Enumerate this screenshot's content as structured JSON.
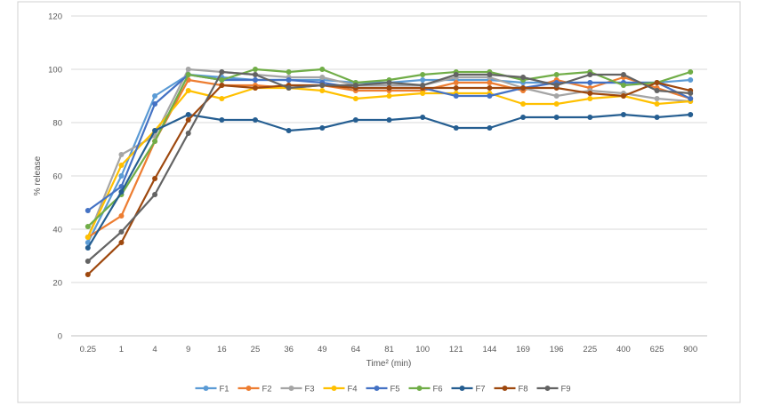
{
  "chart_data": {
    "type": "line",
    "title": "",
    "xlabel": "Time² (min)",
    "ylabel": "% release",
    "ylim": [
      0,
      120
    ],
    "yticks": [
      0,
      20,
      40,
      60,
      80,
      100,
      120
    ],
    "grid": "horizontal",
    "legend_position": "bottom",
    "categories": [
      "0.25",
      "1",
      "4",
      "9",
      "16",
      "25",
      "36",
      "49",
      "64",
      "81",
      "100",
      "121",
      "144",
      "169",
      "196",
      "225",
      "400",
      "625",
      "900"
    ],
    "series": [
      {
        "name": "F1",
        "color": "#5b9bd5",
        "values": [
          35,
          60,
          90,
          98,
          97,
          96,
          96,
          96,
          95,
          95,
          96,
          96,
          96,
          95,
          95,
          95,
          95,
          95,
          96
        ]
      },
      {
        "name": "F2",
        "color": "#ed7d31",
        "values": [
          37,
          45,
          73,
          96,
          94,
          94,
          93,
          94,
          92,
          92,
          92,
          95,
          95,
          92,
          96,
          93,
          97,
          93,
          89
        ]
      },
      {
        "name": "F3",
        "color": "#a5a5a5",
        "values": [
          37,
          68,
          75,
          100,
          99,
          98,
          97,
          97,
          94,
          94,
          94,
          97,
          97,
          93,
          90,
          92,
          91,
          89,
          88
        ]
      },
      {
        "name": "F4",
        "color": "#ffc000",
        "values": [
          37,
          64,
          77,
          92,
          89,
          93,
          93,
          92,
          89,
          90,
          91,
          91,
          91,
          87,
          87,
          89,
          90,
          87,
          88
        ]
      },
      {
        "name": "F5",
        "color": "#4472c4",
        "values": [
          47,
          56,
          87,
          98,
          96,
          96,
          96,
          95,
          93,
          93,
          93,
          90,
          90,
          93,
          95,
          95,
          95,
          95,
          89
        ]
      },
      {
        "name": "F6",
        "color": "#70ad47",
        "values": [
          41,
          53,
          73,
          98,
          96,
          100,
          99,
          100,
          95,
          96,
          98,
          99,
          99,
          96,
          98,
          99,
          94,
          95,
          99
        ]
      },
      {
        "name": "F7",
        "color": "#255e91",
        "values": [
          33,
          54,
          77,
          83,
          81,
          81,
          77,
          78,
          81,
          81,
          82,
          78,
          78,
          82,
          82,
          82,
          83,
          82,
          83
        ]
      },
      {
        "name": "F8",
        "color": "#9e480e",
        "values": [
          23,
          35,
          59,
          81,
          94,
          93,
          94,
          94,
          93,
          93,
          93,
          93,
          93,
          93,
          93,
          91,
          90,
          95,
          92
        ]
      },
      {
        "name": "F9",
        "color": "#636363",
        "values": [
          28,
          39,
          53,
          76,
          99,
          98,
          93,
          94,
          94,
          95,
          94,
          98,
          98,
          97,
          94,
          98,
          98,
          92,
          91
        ]
      }
    ]
  }
}
